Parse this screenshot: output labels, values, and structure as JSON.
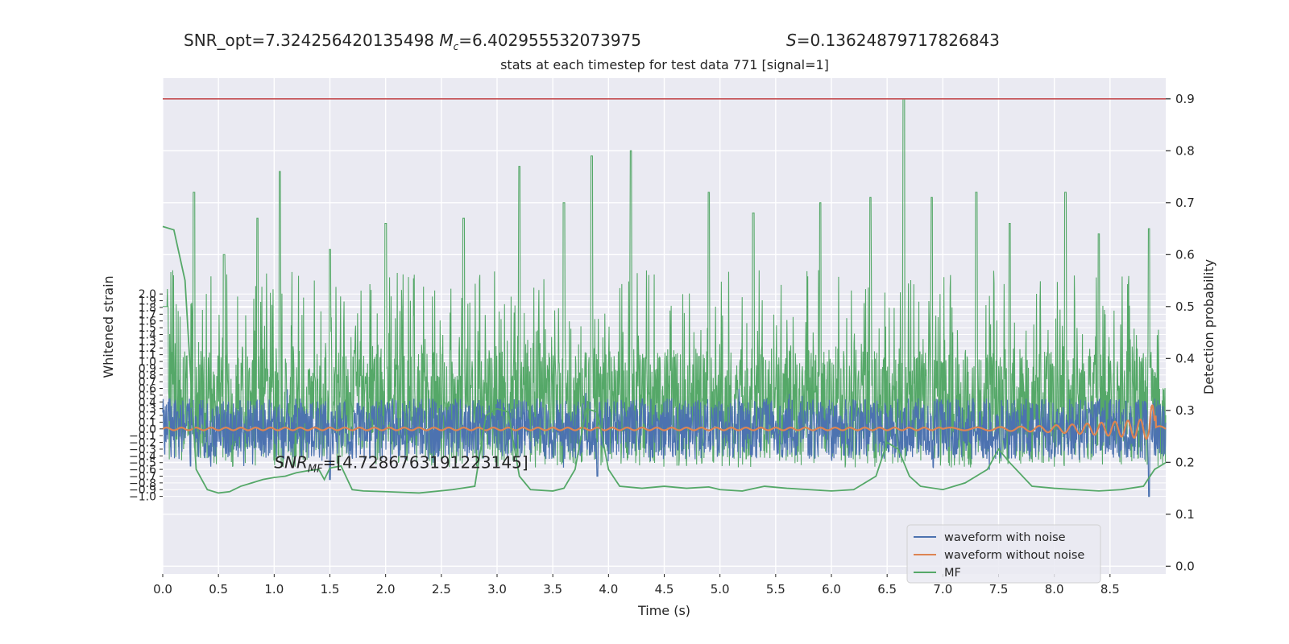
{
  "header": {
    "snr_opt_text": "SNR_opt=7.324256420135498",
    "mc_symbol": "M",
    "mc_sub": "c",
    "mc_value": "=6.402955532073975",
    "s_symbol": "S",
    "s_value": "=0.13624879717826843"
  },
  "chart_data": {
    "type": "line",
    "title": "stats at each timestep for test data 771 [signal=1]",
    "xlabel": "Time (s)",
    "ylabel_left": "Whitened strain",
    "ylabel_right": "Detection probability",
    "xlim": [
      0.0,
      9.0
    ],
    "ylim_left": [
      -2.15,
      5.2
    ],
    "ylim_right": [
      -0.015,
      0.94
    ],
    "x_ticks": [
      "0.0",
      "0.5",
      "1.0",
      "1.5",
      "2.0",
      "2.5",
      "3.0",
      "3.5",
      "4.0",
      "4.5",
      "5.0",
      "5.5",
      "6.0",
      "6.5",
      "7.0",
      "7.5",
      "8.0",
      "8.5"
    ],
    "y_left_ticks": [
      "−1.0",
      "−0.9",
      "−0.8",
      "−0.7",
      "−0.6",
      "−0.5",
      "−0.4",
      "−0.3",
      "−0.2",
      "−0.1",
      "0.0",
      "0.1",
      "0.2",
      "0.3",
      "0.4",
      "0.5",
      "0.6",
      "0.7",
      "0.8",
      "0.9",
      "1.0",
      "1.1",
      "1.2",
      "1.3",
      "1.4",
      "1.5",
      "1.6",
      "1.7",
      "1.8",
      "1.9",
      "2.0"
    ],
    "y_right_ticks": [
      "0.0",
      "0.1",
      "0.2",
      "0.3",
      "0.4",
      "0.5",
      "0.6",
      "0.7",
      "0.8",
      "0.9"
    ],
    "threshold": 0.9,
    "annotation": {
      "symbol": "SNR",
      "sub": "MF",
      "value": "=[4.728676319122314 5]",
      "display": "=[4.7286763191223145]",
      "x": 1.0,
      "y": 0.2
    },
    "series": [
      {
        "name": "waveform with noise",
        "color": "#4c72b0",
        "axis": "left",
        "envelope_abs": 0.45,
        "spikes": [
          [
            0.25,
            -0.55
          ],
          [
            1.5,
            -0.75
          ],
          [
            3.9,
            -0.7
          ],
          [
            8.85,
            -1.0
          ]
        ]
      },
      {
        "name": "waveform without noise",
        "color": "#dd8452",
        "axis": "left",
        "base_amp": 0.02,
        "chirp_start": 7.0,
        "chirp_end": 8.9,
        "chirp_peak_amp": 0.35
      },
      {
        "name": "MF",
        "color": "#55a868",
        "axis": "left",
        "points": [
          [
            0.0,
            3.0
          ],
          [
            0.1,
            2.95
          ],
          [
            0.2,
            2.2
          ],
          [
            0.3,
            -0.6
          ],
          [
            0.4,
            -0.9
          ],
          [
            0.5,
            -0.95
          ],
          [
            0.6,
            -0.93
          ],
          [
            0.7,
            -0.85
          ],
          [
            0.8,
            -0.8
          ],
          [
            0.9,
            -0.75
          ],
          [
            1.0,
            -0.72
          ],
          [
            1.1,
            -0.7
          ],
          [
            1.2,
            -0.65
          ],
          [
            1.3,
            -0.62
          ],
          [
            1.4,
            -0.6
          ],
          [
            1.45,
            -0.75
          ],
          [
            1.5,
            -0.58
          ],
          [
            1.6,
            -0.55
          ],
          [
            1.7,
            -0.9
          ],
          [
            1.8,
            -0.92
          ],
          [
            2.0,
            -0.93
          ],
          [
            2.3,
            -0.95
          ],
          [
            2.6,
            -0.9
          ],
          [
            2.8,
            -0.85
          ],
          [
            2.9,
            0.2
          ],
          [
            3.0,
            0.3
          ],
          [
            3.1,
            0.25
          ],
          [
            3.2,
            -0.7
          ],
          [
            3.3,
            -0.9
          ],
          [
            3.5,
            -0.92
          ],
          [
            3.6,
            -0.88
          ],
          [
            3.7,
            -0.6
          ],
          [
            3.8,
            0.3
          ],
          [
            3.9,
            0.25
          ],
          [
            4.0,
            -0.6
          ],
          [
            4.1,
            -0.85
          ],
          [
            4.3,
            -0.88
          ],
          [
            4.5,
            -0.85
          ],
          [
            4.7,
            -0.88
          ],
          [
            4.9,
            -0.86
          ],
          [
            5.0,
            -0.9
          ],
          [
            5.2,
            -0.92
          ],
          [
            5.4,
            -0.85
          ],
          [
            5.6,
            -0.88
          ],
          [
            5.8,
            -0.9
          ],
          [
            6.0,
            -0.92
          ],
          [
            6.2,
            -0.9
          ],
          [
            6.4,
            -0.7
          ],
          [
            6.5,
            -0.2
          ],
          [
            6.6,
            -0.3
          ],
          [
            6.7,
            -0.7
          ],
          [
            6.8,
            -0.85
          ],
          [
            7.0,
            -0.9
          ],
          [
            7.2,
            -0.8
          ],
          [
            7.4,
            -0.6
          ],
          [
            7.5,
            -0.3
          ],
          [
            7.6,
            -0.5
          ],
          [
            7.8,
            -0.85
          ],
          [
            8.0,
            -0.88
          ],
          [
            8.2,
            -0.9
          ],
          [
            8.4,
            -0.92
          ],
          [
            8.6,
            -0.9
          ],
          [
            8.8,
            -0.85
          ],
          [
            8.9,
            -0.6
          ],
          [
            9.0,
            -0.5
          ]
        ]
      },
      {
        "name": "Detection probability",
        "color": "#55a868",
        "axis": "right",
        "legend": false,
        "band_low": 0.19,
        "band_high": 0.42,
        "peaks": [
          [
            0.28,
            0.72
          ],
          [
            0.55,
            0.6
          ],
          [
            0.85,
            0.67
          ],
          [
            1.05,
            0.76
          ],
          [
            1.5,
            0.61
          ],
          [
            2.0,
            0.66
          ],
          [
            2.7,
            0.67
          ],
          [
            3.2,
            0.77
          ],
          [
            3.6,
            0.7
          ],
          [
            3.85,
            0.79
          ],
          [
            4.2,
            0.8
          ],
          [
            4.9,
            0.72
          ],
          [
            5.3,
            0.68
          ],
          [
            5.9,
            0.7
          ],
          [
            6.35,
            0.71
          ],
          [
            6.65,
            0.9
          ],
          [
            6.9,
            0.71
          ],
          [
            7.3,
            0.72
          ],
          [
            7.6,
            0.66
          ],
          [
            8.1,
            0.72
          ],
          [
            8.4,
            0.64
          ],
          [
            8.85,
            0.65
          ]
        ]
      }
    ],
    "legend": {
      "placement": "lower-right",
      "entries": [
        "waveform with noise",
        "waveform without noise",
        "MF"
      ]
    },
    "grid": true
  }
}
